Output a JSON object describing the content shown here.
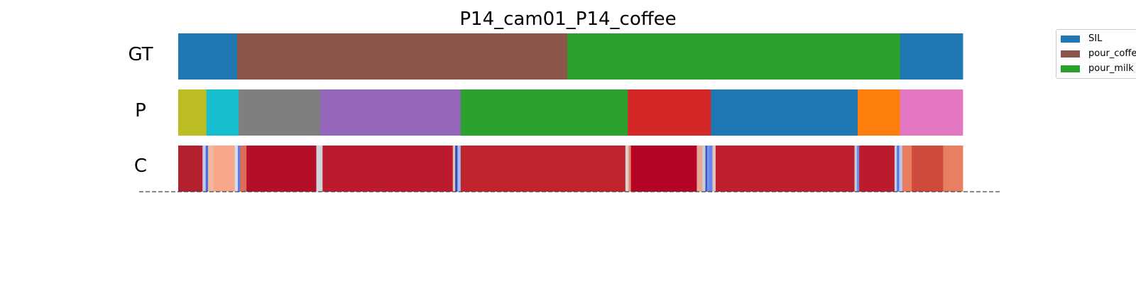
{
  "chart_data": {
    "type": "segmentation",
    "title": "P14_cam01_P14_coffee",
    "row_labels": [
      "GT",
      "P",
      "C"
    ],
    "legend": [
      {
        "label": "SIL",
        "color": "#1f77b4"
      },
      {
        "label": "pour_coffee",
        "color": "#8c564b"
      },
      {
        "label": "pour_milk",
        "color": "#2ca02c"
      }
    ],
    "gt_segments": [
      {
        "start": 0.0,
        "end": 0.075,
        "color": "#1f77b4"
      },
      {
        "start": 0.075,
        "end": 0.496,
        "color": "#8c564b"
      },
      {
        "start": 0.496,
        "end": 0.92,
        "color": "#2ca02c"
      },
      {
        "start": 0.92,
        "end": 1.0,
        "color": "#1f77b4"
      }
    ],
    "pred_segments": [
      {
        "start": 0.0,
        "end": 0.036,
        "color": "#bcbd22"
      },
      {
        "start": 0.036,
        "end": 0.077,
        "color": "#17becf"
      },
      {
        "start": 0.077,
        "end": 0.181,
        "color": "#7f7f7f"
      },
      {
        "start": 0.181,
        "end": 0.36,
        "color": "#9467bd"
      },
      {
        "start": 0.36,
        "end": 0.573,
        "color": "#2ca02c"
      },
      {
        "start": 0.573,
        "end": 0.679,
        "color": "#d62728"
      },
      {
        "start": 0.679,
        "end": 0.866,
        "color": "#1f77b4"
      },
      {
        "start": 0.866,
        "end": 0.92,
        "color": "#ff7f0e"
      },
      {
        "start": 0.92,
        "end": 1.0,
        "color": "#e377c2"
      }
    ],
    "confidence_segments": [
      {
        "start": 0.0,
        "end": 0.031,
        "color": "#b4202e"
      },
      {
        "start": 0.031,
        "end": 0.035,
        "color": "#c0cdea"
      },
      {
        "start": 0.035,
        "end": 0.038,
        "color": "#4a6fe3"
      },
      {
        "start": 0.038,
        "end": 0.045,
        "color": "#f4b69a"
      },
      {
        "start": 0.045,
        "end": 0.072,
        "color": "#f7a689"
      },
      {
        "start": 0.072,
        "end": 0.076,
        "color": "#d8dce8"
      },
      {
        "start": 0.076,
        "end": 0.079,
        "color": "#5d7ce6"
      },
      {
        "start": 0.079,
        "end": 0.087,
        "color": "#dd6e55"
      },
      {
        "start": 0.087,
        "end": 0.176,
        "color": "#b40f28"
      },
      {
        "start": 0.176,
        "end": 0.184,
        "color": "#d0d3da"
      },
      {
        "start": 0.184,
        "end": 0.35,
        "color": "#bb1b2c"
      },
      {
        "start": 0.35,
        "end": 0.353,
        "color": "#e3c2b4"
      },
      {
        "start": 0.353,
        "end": 0.356,
        "color": "#3b4cc0"
      },
      {
        "start": 0.356,
        "end": 0.36,
        "color": "#9fbdfa"
      },
      {
        "start": 0.36,
        "end": 0.57,
        "color": "#c0252e"
      },
      {
        "start": 0.57,
        "end": 0.574,
        "color": "#d9d4cf"
      },
      {
        "start": 0.574,
        "end": 0.577,
        "color": "#e88a6e"
      },
      {
        "start": 0.577,
        "end": 0.661,
        "color": "#b40426"
      },
      {
        "start": 0.661,
        "end": 0.668,
        "color": "#e8a893"
      },
      {
        "start": 0.668,
        "end": 0.672,
        "color": "#c9cdd6"
      },
      {
        "start": 0.672,
        "end": 0.674,
        "color": "#3b4cc0"
      },
      {
        "start": 0.674,
        "end": 0.677,
        "color": "#7094ee"
      },
      {
        "start": 0.677,
        "end": 0.681,
        "color": "#6687e9"
      },
      {
        "start": 0.681,
        "end": 0.685,
        "color": "#e4c4b6"
      },
      {
        "start": 0.685,
        "end": 0.862,
        "color": "#bd1f2d"
      },
      {
        "start": 0.862,
        "end": 0.865,
        "color": "#c6cbd8"
      },
      {
        "start": 0.865,
        "end": 0.868,
        "color": "#6b8de9"
      },
      {
        "start": 0.868,
        "end": 0.913,
        "color": "#bb1b2c"
      },
      {
        "start": 0.913,
        "end": 0.916,
        "color": "#c4cde0"
      },
      {
        "start": 0.916,
        "end": 0.919,
        "color": "#5a78e4"
      },
      {
        "start": 0.919,
        "end": 0.923,
        "color": "#b6c7ea"
      },
      {
        "start": 0.923,
        "end": 0.935,
        "color": "#e97b5f"
      },
      {
        "start": 0.935,
        "end": 0.975,
        "color": "#cd4a3d"
      },
      {
        "start": 0.975,
        "end": 1.0,
        "color": "#ea7e62"
      }
    ]
  }
}
